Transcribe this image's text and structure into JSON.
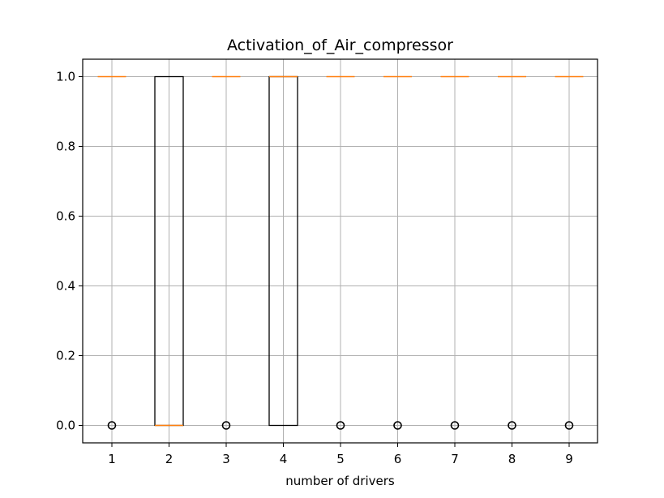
{
  "chart_data": {
    "type": "box",
    "title": "Activation_of_Air_compressor",
    "xlabel": "number of drivers",
    "ylabel": "",
    "categories": [
      "1",
      "2",
      "3",
      "4",
      "5",
      "6",
      "7",
      "8",
      "9"
    ],
    "ylim": [
      -0.05,
      1.05
    ],
    "yticks": [
      "0.0",
      "0.2",
      "0.4",
      "0.6",
      "0.8",
      "1.0"
    ],
    "grid": true,
    "colors": {
      "median": "#ff7f0e",
      "box": "#000000",
      "grid": "#b0b0b0"
    },
    "boxes": [
      {
        "category": "1",
        "q1": 1,
        "median": 1,
        "q3": 1,
        "whisker_low": 1,
        "whisker_high": 1,
        "fliers": [
          0
        ]
      },
      {
        "category": "2",
        "q1": 0,
        "median": 0,
        "q3": 1,
        "whisker_low": 0,
        "whisker_high": 1,
        "fliers": []
      },
      {
        "category": "3",
        "q1": 1,
        "median": 1,
        "q3": 1,
        "whisker_low": 1,
        "whisker_high": 1,
        "fliers": [
          0
        ]
      },
      {
        "category": "4",
        "q1": 0,
        "median": 1,
        "q3": 1,
        "whisker_low": 0,
        "whisker_high": 1,
        "fliers": []
      },
      {
        "category": "5",
        "q1": 1,
        "median": 1,
        "q3": 1,
        "whisker_low": 1,
        "whisker_high": 1,
        "fliers": [
          0
        ]
      },
      {
        "category": "6",
        "q1": 1,
        "median": 1,
        "q3": 1,
        "whisker_low": 1,
        "whisker_high": 1,
        "fliers": [
          0
        ]
      },
      {
        "category": "7",
        "q1": 1,
        "median": 1,
        "q3": 1,
        "whisker_low": 1,
        "whisker_high": 1,
        "fliers": [
          0
        ]
      },
      {
        "category": "8",
        "q1": 1,
        "median": 1,
        "q3": 1,
        "whisker_low": 1,
        "whisker_high": 1,
        "fliers": [
          0
        ]
      },
      {
        "category": "9",
        "q1": 1,
        "median": 1,
        "q3": 1,
        "whisker_low": 1,
        "whisker_high": 1,
        "fliers": [
          0
        ]
      }
    ]
  }
}
